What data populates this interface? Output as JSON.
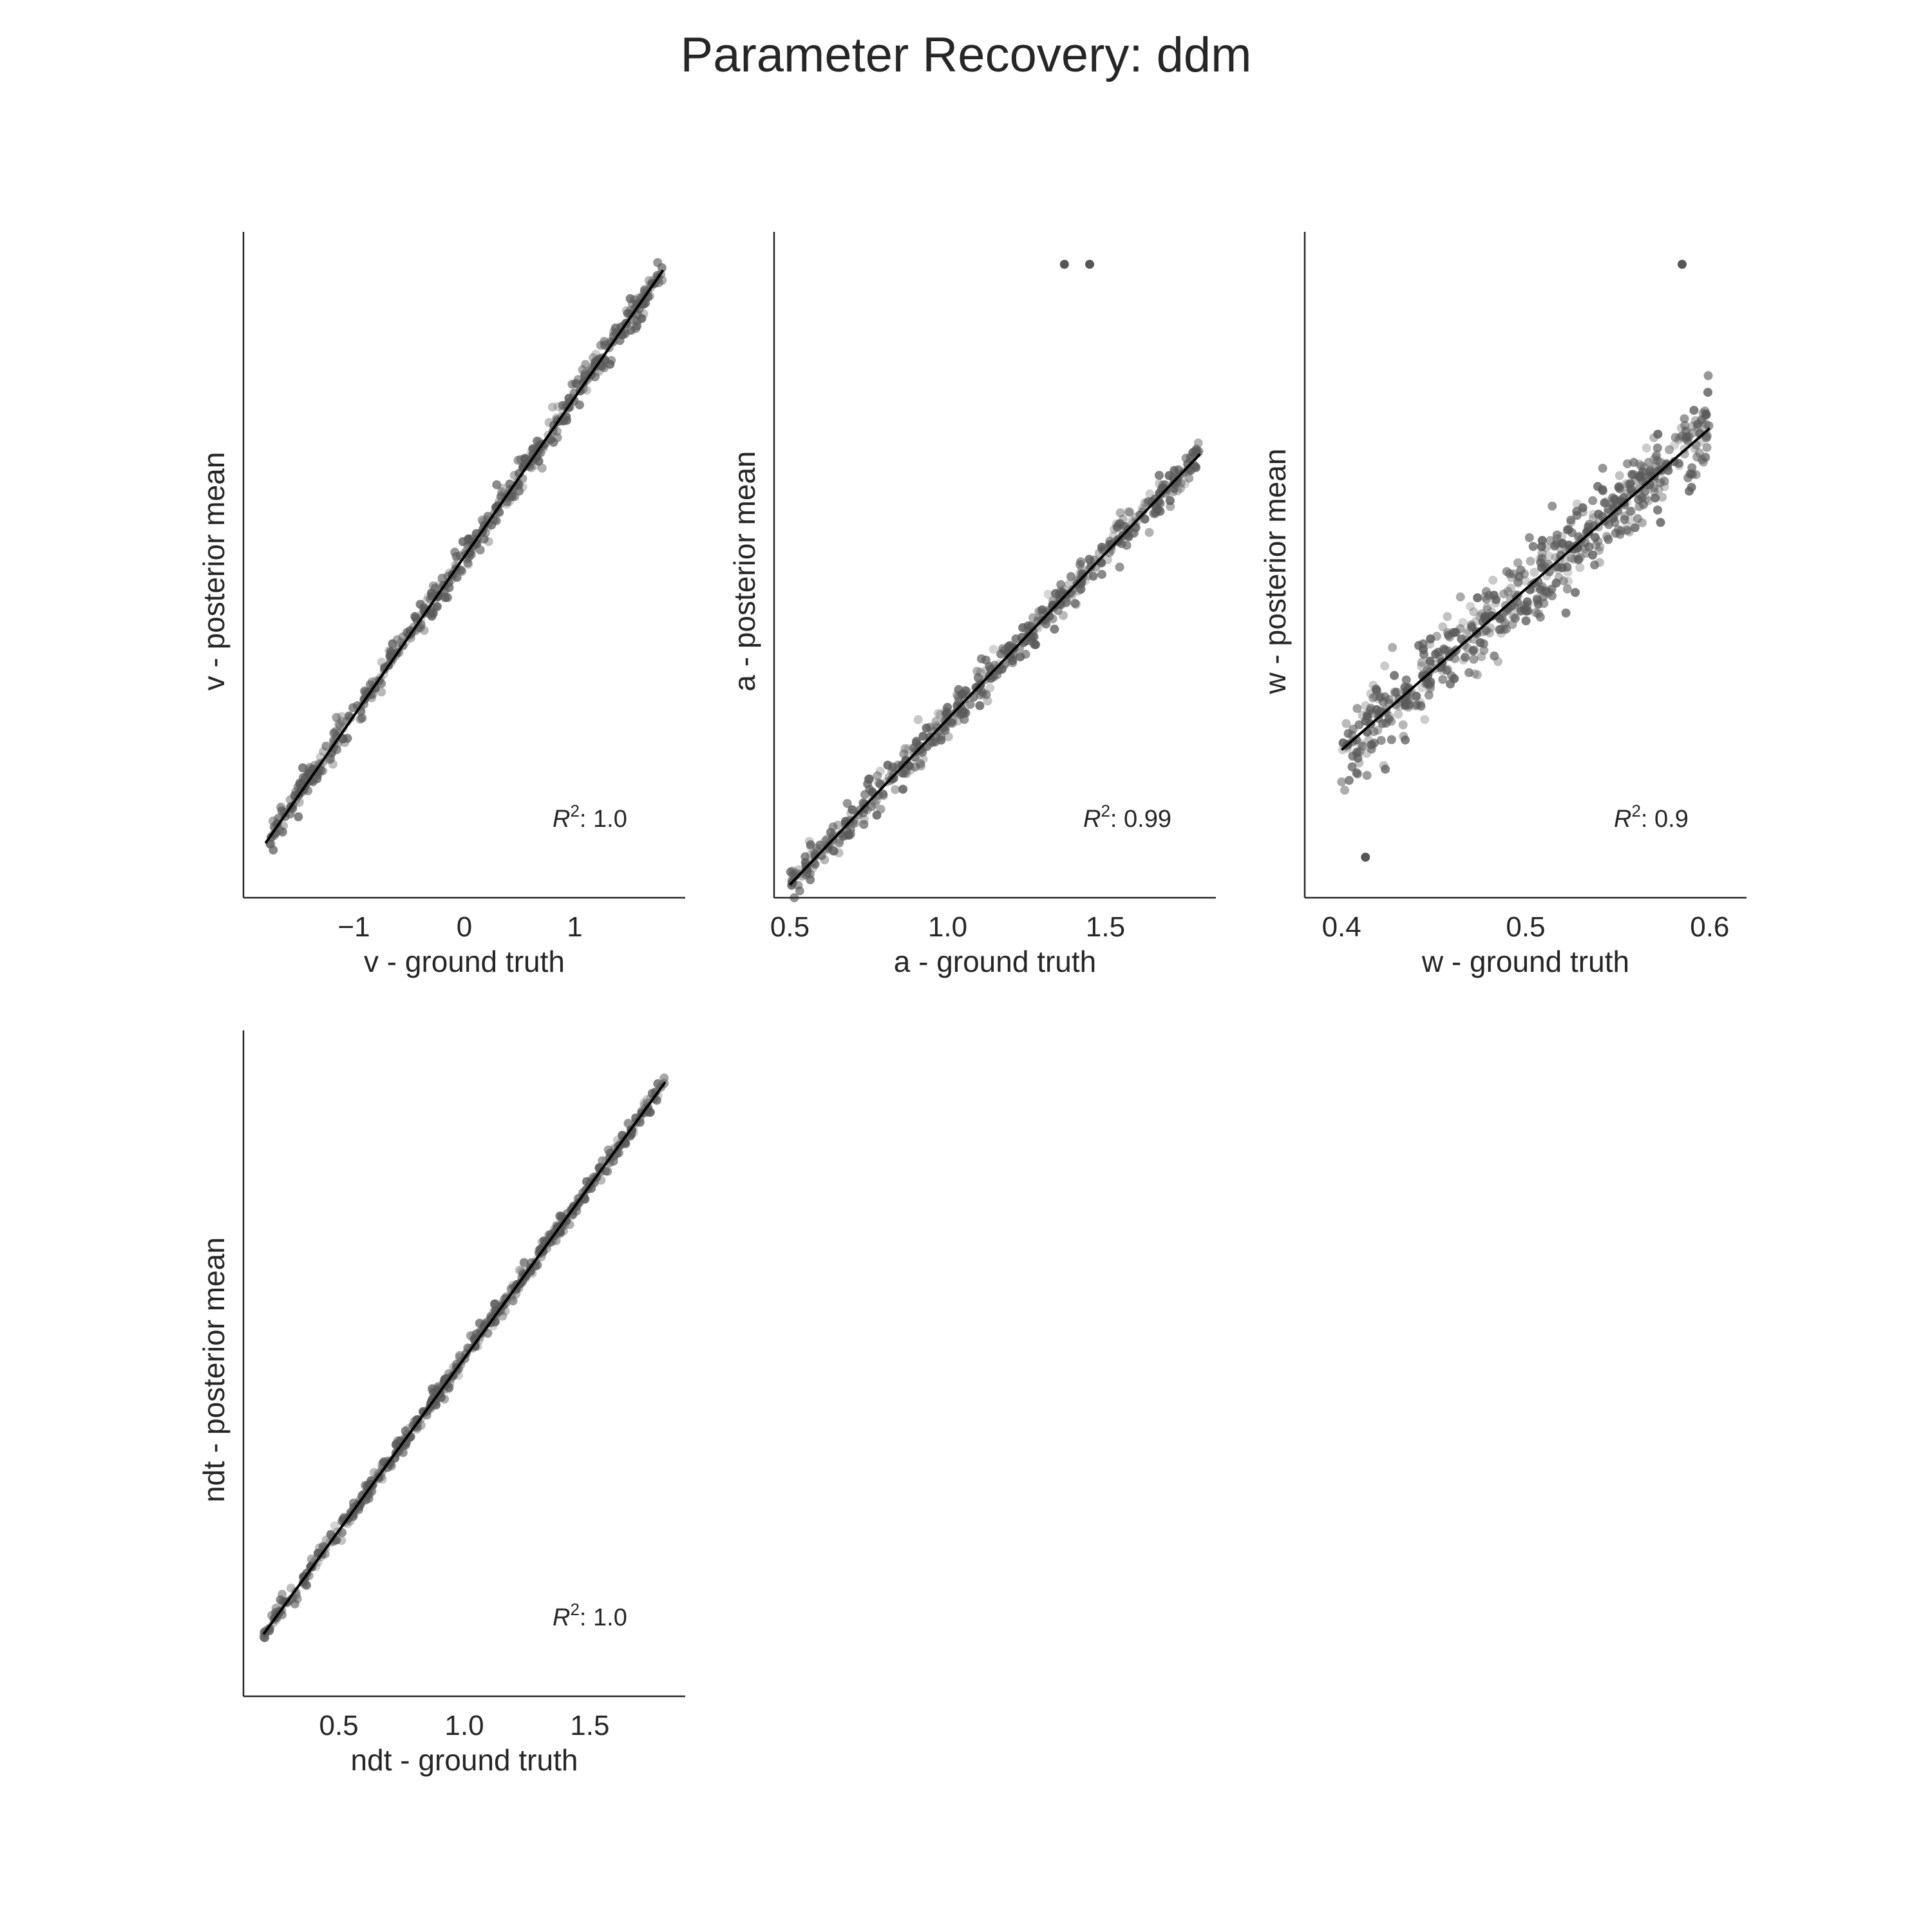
{
  "figure": {
    "title": "Parameter Recovery: ddm"
  },
  "colors": {
    "points": "#5a5a5a",
    "fit_line": "#000000",
    "axis": "#262626"
  },
  "chart_data": [
    {
      "type": "scatter",
      "param": "v",
      "xlabel": "v - ground truth",
      "ylabel": "v - posterior mean",
      "xlim": [
        -2.0,
        2.0
      ],
      "ylim": [
        -2.1,
        2.0
      ],
      "xticks": [
        -1,
        0,
        1
      ],
      "xtick_labels": [
        "−1",
        "0",
        "1"
      ],
      "yticks_visible": false,
      "r2_label": "1.0",
      "fit": {
        "slope": 0.98,
        "intercept": 0.0,
        "x_range": [
          -1.8,
          1.8
        ]
      },
      "points": {
        "n": 500,
        "x_range": [
          -1.8,
          1.8
        ],
        "noise_sd": 0.05
      },
      "outliers": [],
      "grid": false,
      "legend": "none"
    },
    {
      "type": "scatter",
      "param": "a",
      "xlabel": "a - ground truth",
      "ylabel": "a - posterior mean",
      "xlim": [
        0.45,
        1.85
      ],
      "ylim": [
        0.45,
        2.5
      ],
      "xticks": [
        0.5,
        1.0,
        1.5
      ],
      "xtick_labels": [
        "0.5",
        "1.0",
        "1.5"
      ],
      "yticks_visible": false,
      "r2_label": "0.99",
      "fit": {
        "slope": 1.02,
        "intercept": -0.02,
        "x_range": [
          0.5,
          1.8
        ]
      },
      "points": {
        "n": 500,
        "x_range": [
          0.5,
          1.8
        ],
        "noise_sd": 0.03
      },
      "outliers": [
        [
          1.37,
          2.4
        ],
        [
          1.45,
          2.4
        ]
      ],
      "grid": false,
      "legend": "none"
    },
    {
      "type": "scatter",
      "param": "w",
      "xlabel": "w - ground truth",
      "ylabel": "w - posterior mean",
      "xlim": [
        0.38,
        0.62
      ],
      "ylim": [
        0.31,
        0.72
      ],
      "xticks": [
        0.4,
        0.5,
        0.6
      ],
      "xtick_labels": [
        "0.4",
        "0.5",
        "0.6"
      ],
      "yticks_visible": false,
      "r2_label": "0.9",
      "fit": {
        "slope": 0.99,
        "intercept": 0.005,
        "x_range": [
          0.4,
          0.6
        ]
      },
      "points": {
        "n": 600,
        "x_range": [
          0.4,
          0.6
        ],
        "noise_sd": 0.012
      },
      "outliers": [
        [
          0.585,
          0.7
        ],
        [
          0.413,
          0.335
        ]
      ],
      "grid": false,
      "legend": "none"
    },
    {
      "type": "scatter",
      "param": "ndt",
      "xlabel": "ndt - ground truth",
      "ylabel": "ndt - posterior mean",
      "xlim": [
        0.12,
        1.88
      ],
      "ylim": [
        0.02,
        1.95
      ],
      "xticks": [
        0.5,
        1.0,
        1.5
      ],
      "xtick_labels": [
        "0.5",
        "1.0",
        "1.5"
      ],
      "yticks_visible": false,
      "r2_label": "1.0",
      "fit": {
        "slope": 1.0,
        "intercept": 0.0,
        "x_range": [
          0.2,
          1.8
        ]
      },
      "points": {
        "n": 500,
        "x_range": [
          0.2,
          1.8
        ],
        "noise_sd": 0.015
      },
      "outliers": [],
      "grid": false,
      "legend": "none"
    }
  ]
}
